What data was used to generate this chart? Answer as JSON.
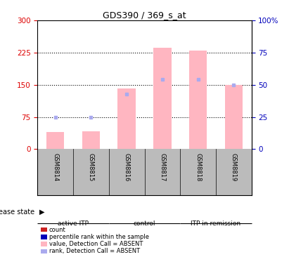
{
  "title": "GDS390 / 369_s_at",
  "samples": [
    "GSM8814",
    "GSM8815",
    "GSM8816",
    "GSM8817",
    "GSM8818",
    "GSM8819"
  ],
  "groups": [
    {
      "name": "active ITP",
      "color": "#90EE90",
      "samples_idx": [
        0,
        1
      ]
    },
    {
      "name": "control",
      "color": "#44CC44",
      "samples_idx": [
        2,
        3
      ]
    },
    {
      "name": "ITP in remission",
      "color": "#22BB22",
      "samples_idx": [
        4,
        5
      ]
    }
  ],
  "ylim_left": [
    0,
    300
  ],
  "ylim_right": [
    0,
    100
  ],
  "yticks_left": [
    0,
    75,
    150,
    225,
    300
  ],
  "yticks_right": [
    0,
    25,
    50,
    75,
    100
  ],
  "yticklabels_right": [
    "0",
    "25",
    "50",
    "75",
    "100%"
  ],
  "pink_bar_values": [
    40,
    42,
    142,
    237,
    230,
    150
  ],
  "blue_dot_values": [
    25,
    25,
    43,
    54,
    54,
    50
  ],
  "left_axis_color": "#DD0000",
  "right_axis_color": "#0000BB",
  "bar_color_pink": "#FFB6C1",
  "bar_color_red": "#CC2222",
  "dot_color_blue": "#AAAAEE",
  "dot_color_darkblue": "#0000BB",
  "bg_color_samples": "#BBBBBB",
  "bar_width": 0.5,
  "group_colors": [
    "#99DD99",
    "#44CC44",
    "#22BB22"
  ],
  "legend_labels": [
    "count",
    "percentile rank within the sample",
    "value, Detection Call = ABSENT",
    "rank, Detection Call = ABSENT"
  ],
  "legend_colors": [
    "#CC2222",
    "#0000BB",
    "#FFB6C1",
    "#AAAAEE"
  ]
}
